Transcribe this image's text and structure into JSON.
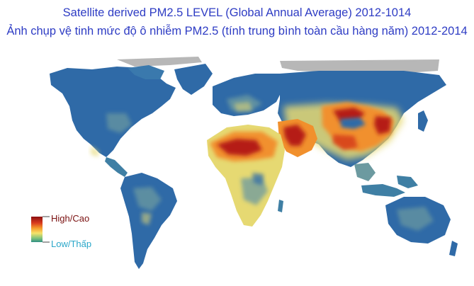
{
  "title_en": "Satellite derived PM2.5 LEVEL (Global Annual Average) 2012-1014",
  "title_vi": "Ảnh chụp vệ tinh mức độ ô nhiễm PM2.5 (tính trung bình toàn cầu hàng năm) 2012-2014",
  "legend": {
    "high_label": "High/Cao",
    "low_label": "Low/Thấp",
    "colors": [
      "#8b0f10",
      "#d93a1e",
      "#f59a2b",
      "#f6e36a",
      "#7fc27b",
      "#2f8f84"
    ]
  },
  "colors": {
    "title": "#2e3cc4",
    "ocean": "#ffffff",
    "no_data": "#b7b7b7",
    "low": "#2f6aa7",
    "moderate": "#6c9aa0",
    "medium": "#e6d972",
    "high": "#f1902d",
    "very_high": "#b51a16"
  }
}
